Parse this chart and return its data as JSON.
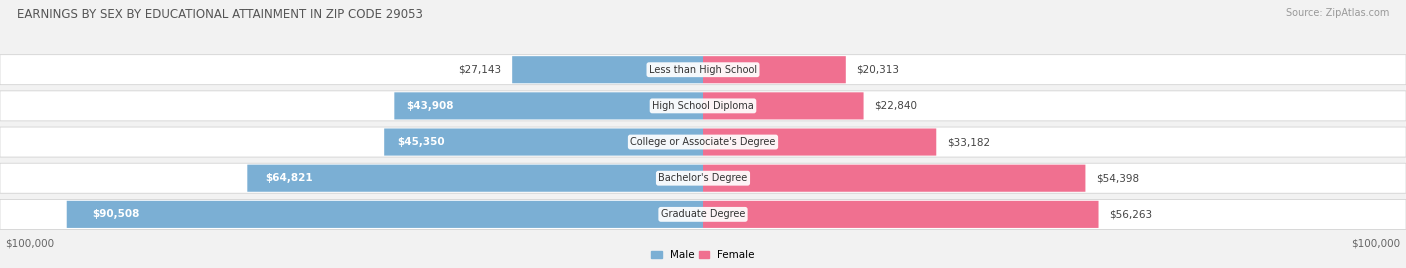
{
  "title": "EARNINGS BY SEX BY EDUCATIONAL ATTAINMENT IN ZIP CODE 29053",
  "source": "Source: ZipAtlas.com",
  "categories": [
    "Less than High School",
    "High School Diploma",
    "College or Associate's Degree",
    "Bachelor's Degree",
    "Graduate Degree"
  ],
  "male_values": [
    27143,
    43908,
    45350,
    64821,
    90508
  ],
  "female_values": [
    20313,
    22840,
    33182,
    54398,
    56263
  ],
  "male_color": "#7bafd4",
  "female_color": "#f07090",
  "max_value": 100000,
  "background_color": "#f2f2f2",
  "bar_bg_color": "#e2e2e2",
  "title_fontsize": 8.5,
  "bar_label_fontsize": 7.5,
  "cat_label_fontsize": 7.0,
  "source_fontsize": 7.0,
  "axis_fontsize": 7.5
}
